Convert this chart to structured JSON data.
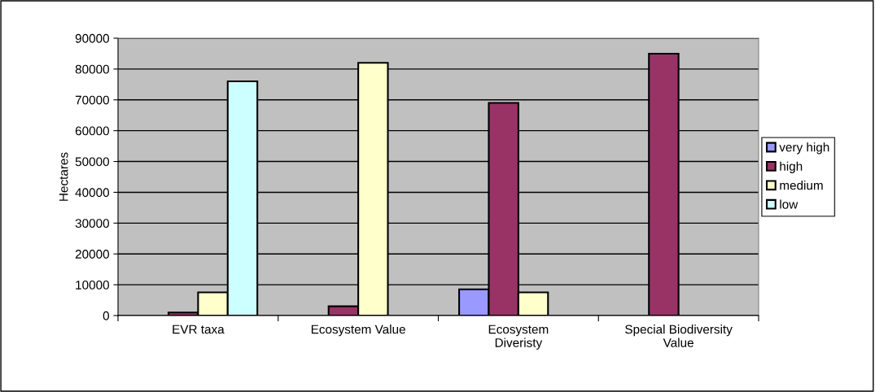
{
  "chart_data": {
    "type": "bar",
    "ylabel": "Hectares",
    "categories": [
      "EVR taxa",
      "Ecosystem Value",
      "Ecosystem\nDiveristy",
      "Special Biodiversity\nValue"
    ],
    "series": [
      {
        "name": "very high",
        "color": "#9999ff",
        "values": [
          null,
          null,
          8500,
          null
        ]
      },
      {
        "name": "high",
        "color": "#993366",
        "values": [
          1000,
          3000,
          69000,
          85000
        ]
      },
      {
        "name": "medium",
        "color": "#ffffcc",
        "values": [
          7500,
          82000,
          7500,
          null
        ]
      },
      {
        "name": "low",
        "color": "#ccffff",
        "values": [
          76000,
          null,
          null,
          null
        ]
      }
    ],
    "ylim": [
      0,
      90000
    ],
    "yticks": [
      0,
      10000,
      20000,
      30000,
      40000,
      50000,
      60000,
      70000,
      80000,
      90000
    ],
    "grid": "y",
    "legend": "right"
  }
}
